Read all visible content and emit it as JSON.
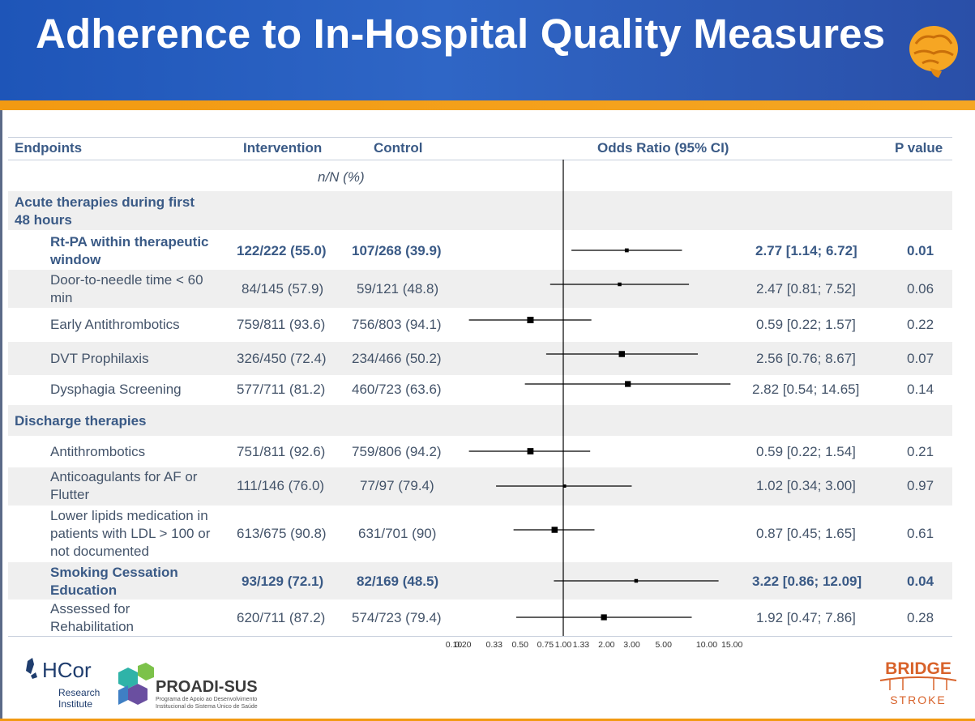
{
  "slide": {
    "title": "Adherence to In-Hospital Quality Measures"
  },
  "table": {
    "headers": {
      "endpoints": "Endpoints",
      "intervention": "Intervention",
      "control": "Control",
      "odds_ratio": "Odds Ratio (95% CI)",
      "p_value": "P value"
    },
    "subheader": "n/N (%)",
    "sections": [
      {
        "label_line1": "Acute therapies during first",
        "label_line2": "48 hours"
      },
      {
        "label_line1": "Discharge therapies",
        "label_line2": ""
      }
    ],
    "rows": [
      {
        "name_line1": "Rt-PA  within therapeutic",
        "name_line2": "window",
        "intervention": "122/222 (55.0)",
        "control": "107/268 (39.9)",
        "or_text": "2.77 [1.14; 6.72]",
        "p": "0.01",
        "bold": true
      },
      {
        "name_line1": "Door-to-needle time < 60",
        "name_line2": "min",
        "intervention": "84/145 (57.9)",
        "control": "59/121 (48.8)",
        "or_text": "2.47 [0.81; 7.52]",
        "p": "0.06",
        "bold": false
      },
      {
        "name_line1": "Early Antithrombotics",
        "name_line2": "",
        "intervention": "759/811 (93.6)",
        "control": "756/803 (94.1)",
        "or_text": "0.59 [0.22; 1.57]",
        "p": "0.22",
        "bold": false
      },
      {
        "name_line1": "DVT Prophilaxis",
        "name_line2": "",
        "intervention": "326/450 (72.4)",
        "control": "234/466 (50.2)",
        "or_text": "2.56 [0.76; 8.67]",
        "p": "0.07",
        "bold": false
      },
      {
        "name_line1": "Dysphagia Screening",
        "name_line2": "",
        "intervention": "577/711 (81.2)",
        "control": "460/723 (63.6)",
        "or_text": "2.82 [0.54; 14.65]",
        "p": "0.14",
        "bold": false
      },
      {
        "name_line1": "Antithrombotics",
        "name_line2": "",
        "intervention": "751/811 (92.6)",
        "control": "759/806 (94.2)",
        "or_text": "0.59 [0.22; 1.54]",
        "p": "0.21",
        "bold": false
      },
      {
        "name_line1": "Anticoagulants for AF or",
        "name_line2": "Flutter",
        "intervention": "111/146 (76.0)",
        "control": "77/97 (79.4)",
        "or_text": "1.02 [0.34; 3.00]",
        "p": "0.97",
        "bold": false
      },
      {
        "name_line1": "Lower lipids medication in",
        "name_line2": "patients with LDL > 100 or",
        "name_line3": "not documented",
        "intervention": "613/675 (90.8)",
        "control": "631/701 (90)",
        "or_text": "0.87 [0.45; 1.65]",
        "p": "0.61",
        "bold": false
      },
      {
        "name_line1": "Smoking Cessation",
        "name_line2": "Education",
        "intervention": "93/129 (72.1)",
        "control": "82/169 (48.5)",
        "or_text": "3.22 [0.86; 12.09]",
        "p": "0.04",
        "bold": true
      },
      {
        "name_line1": "Assessed for",
        "name_line2": "Rehabilitation",
        "intervention": "620/711 (87.2)",
        "control": "574/723 (79.4)",
        "or_text": "1.92 [0.47; 7.86]",
        "p": "0.28",
        "bold": false
      }
    ]
  },
  "chart_data": {
    "type": "scatter",
    "x_scale": "log",
    "reference_line": 1.0,
    "xlim": [
      0.1,
      15.0
    ],
    "x_ticks": [
      0.1,
      0.2,
      0.33,
      0.5,
      0.75,
      1.0,
      1.33,
      2.0,
      3.0,
      5.0,
      10.0,
      15.0
    ],
    "x_tick_labels": [
      "0.10",
      "0.20",
      "0.33",
      "0.50",
      "0.75",
      "1.00",
      "1.33",
      "2.00",
      "3.00",
      "5.00",
      "10.00",
      "15.00"
    ],
    "categories": [
      "Rt-PA within therapeutic window",
      "Door-to-needle time < 60 min",
      "Early Antithrombotics",
      "DVT Prophilaxis",
      "Dysphagia Screening",
      "Antithrombotics",
      "Anticoagulants for AF or Flutter",
      "Lower lipids medication in patients with LDL > 100 or not documented",
      "Smoking Cessation Education",
      "Assessed for Rehabilitation"
    ],
    "or": [
      2.77,
      2.47,
      0.59,
      2.56,
      2.82,
      0.59,
      1.02,
      0.87,
      3.22,
      1.92
    ],
    "ci_low": [
      1.14,
      0.81,
      0.22,
      0.76,
      0.54,
      0.22,
      0.34,
      0.45,
      0.86,
      0.47
    ],
    "ci_high": [
      6.72,
      7.52,
      1.57,
      8.67,
      14.65,
      1.54,
      3.0,
      1.65,
      12.09,
      7.86
    ],
    "marker_weight": [
      0.35,
      0.3,
      1.0,
      0.9,
      0.85,
      0.95,
      0.2,
      0.9,
      0.3,
      0.85
    ]
  },
  "logos": {
    "hcor": {
      "brand": "HCor",
      "line1": "Research",
      "line2": "Institute"
    },
    "proadi": {
      "brand": "PROADI-SUS",
      "line1": "Programa de Apoio ao Desenvolvimento",
      "line2": "Institucional do Sistema Único de Saúde"
    },
    "bridge": {
      "line1": "BRIDGE",
      "line2": "STROKE"
    }
  },
  "colors": {
    "header_blue": "#2a5cbd",
    "accent_orange": "#f29a12",
    "text_blue": "#3a5a86",
    "text_gray": "#44546a"
  }
}
